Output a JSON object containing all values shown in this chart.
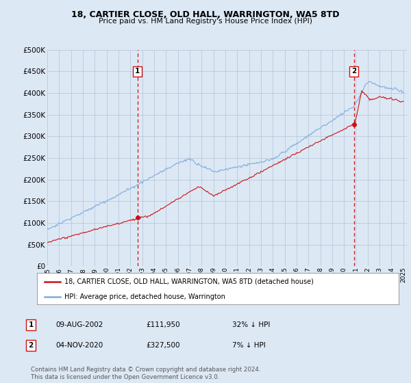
{
  "title": "18, CARTIER CLOSE, OLD HALL, WARRINGTON, WA5 8TD",
  "subtitle": "Price paid vs. HM Land Registry's House Price Index (HPI)",
  "bg_color": "#dde8f5",
  "plot_bg_color": "#dde8f5",
  "grid_color": "#c0cfe0",
  "hpi_color": "#7aaddc",
  "price_color": "#cc1111",
  "dashed_color": "#cc1111",
  "ylim": [
    0,
    500000
  ],
  "yticks": [
    0,
    50000,
    100000,
    150000,
    200000,
    250000,
    300000,
    350000,
    400000,
    450000,
    500000
  ],
  "ytick_labels": [
    "£0",
    "£50K",
    "£100K",
    "£150K",
    "£200K",
    "£250K",
    "£300K",
    "£350K",
    "£400K",
    "£450K",
    "£500K"
  ],
  "year_start": 1995,
  "year_end": 2025,
  "sale1_date": 2002.6,
  "sale1_price": 111950,
  "sale1_label": "1",
  "sale2_date": 2020.84,
  "sale2_price": 327500,
  "sale2_label": "2",
  "legend_property": "18, CARTIER CLOSE, OLD HALL, WARRINGTON, WA5 8TD (detached house)",
  "legend_hpi": "HPI: Average price, detached house, Warrington",
  "table_row1": [
    "1",
    "09-AUG-2002",
    "£111,950",
    "32% ↓ HPI"
  ],
  "table_row2": [
    "2",
    "04-NOV-2020",
    "£327,500",
    "7% ↓ HPI"
  ],
  "footnote": "Contains HM Land Registry data © Crown copyright and database right 2024.\nThis data is licensed under the Open Government Licence v3.0.",
  "xlabel_years": [
    "1995",
    "1996",
    "1997",
    "1998",
    "1999",
    "2000",
    "2001",
    "2002",
    "2003",
    "2004",
    "2005",
    "2006",
    "2007",
    "2008",
    "2009",
    "2010",
    "2011",
    "2012",
    "2013",
    "2014",
    "2015",
    "2016",
    "2017",
    "2018",
    "2019",
    "2020",
    "2021",
    "2022",
    "2023",
    "2024",
    "2025"
  ]
}
